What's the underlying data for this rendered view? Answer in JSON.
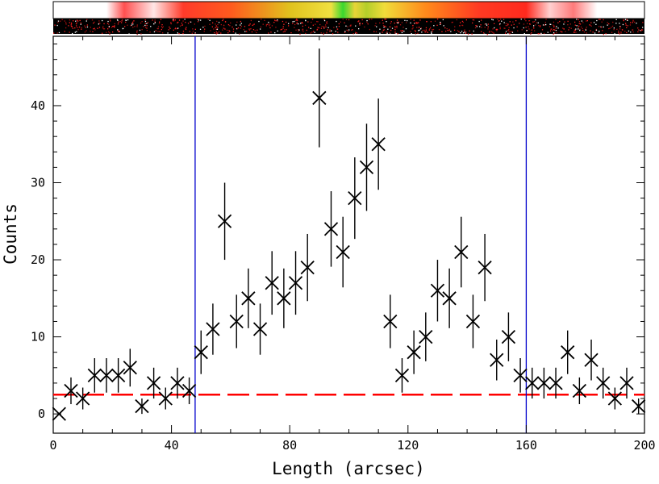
{
  "chart_data": {
    "type": "scatter",
    "xlabel": "Length (arcsec)",
    "ylabel": "Counts",
    "xlim": [
      0,
      200
    ],
    "ylim": [
      -2.5,
      49
    ],
    "xticks": [
      0,
      40,
      80,
      120,
      160,
      200
    ],
    "yticks": [
      0,
      10,
      20,
      30,
      40
    ],
    "grid": false,
    "series": [
      {
        "marker": "x",
        "error_bars": "poisson",
        "color": "#000000",
        "x": [
          2,
          6,
          10,
          14,
          18,
          22,
          26,
          30,
          34,
          38,
          42,
          46,
          50,
          54,
          58,
          62,
          66,
          70,
          74,
          78,
          82,
          86,
          90,
          94,
          98,
          102,
          106,
          110,
          114,
          118,
          122,
          126,
          130,
          134,
          138,
          142,
          146,
          150,
          154,
          158,
          162,
          166,
          170,
          174,
          178,
          182,
          186,
          190,
          194,
          198
        ],
        "y": [
          0,
          3,
          2,
          5,
          5,
          5,
          6,
          1,
          4,
          2,
          4,
          3,
          8,
          11,
          25,
          12,
          15,
          11,
          17,
          15,
          17,
          19,
          41,
          24,
          21,
          28,
          32,
          35,
          12,
          5,
          8,
          10,
          16,
          15,
          21,
          12,
          19,
          7,
          10,
          5,
          4,
          4,
          4,
          8,
          3,
          7,
          4,
          2,
          4,
          1
        ]
      }
    ],
    "background_level": {
      "y": 2.5,
      "style": "dashed",
      "color": "#ff0000"
    },
    "vertical_lines": [
      {
        "x": 48,
        "color": "#0000cc"
      },
      {
        "x": 160,
        "color": "#0000cc"
      }
    ]
  }
}
